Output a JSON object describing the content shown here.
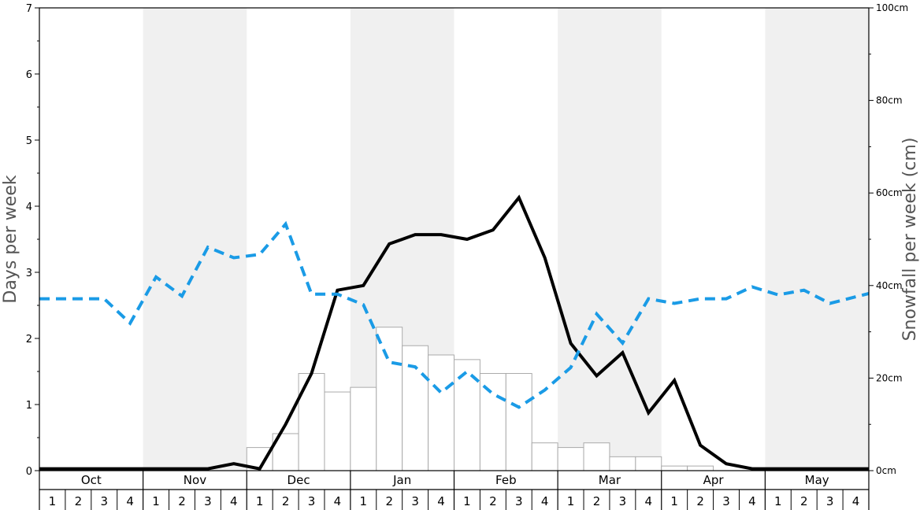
{
  "chart_data": {
    "type": "bar",
    "ylabel": "Days per week",
    "ylabel_right": "Snowfall per week (cm)",
    "ylim": [
      0,
      7
    ],
    "y_ticks": [
      0,
      1,
      2,
      3,
      4,
      5,
      6,
      7
    ],
    "ylim_right": [
      0,
      100
    ],
    "y_ticks_right": [
      {
        "value": 0,
        "label": "0cm"
      },
      {
        "value": 20,
        "label": "20cm"
      },
      {
        "value": 40,
        "label": "40cm"
      },
      {
        "value": 60,
        "label": "60cm"
      },
      {
        "value": 80,
        "label": "80cm"
      },
      {
        "value": 100,
        "label": "100cm"
      }
    ],
    "months": [
      "Oct",
      "Nov",
      "Dec",
      "Jan",
      "Feb",
      "Mar",
      "Apr",
      "May"
    ],
    "weeks": [
      "1",
      "2",
      "3",
      "4"
    ],
    "shaded_months": [
      "Nov",
      "Jan",
      "Mar",
      "May"
    ],
    "series": [
      {
        "type": "bar",
        "axis": "left",
        "values": [
          0,
          0,
          0,
          0,
          0,
          0,
          0,
          0,
          0.35,
          0.56,
          1.47,
          1.19,
          1.26,
          2.17,
          1.89,
          1.75,
          1.68,
          1.47,
          1.47,
          0.42,
          0.35,
          0.42,
          0.21,
          0.21,
          0.07,
          0.07,
          0,
          0,
          0,
          0,
          0,
          0
        ]
      },
      {
        "type": "line",
        "style": "solid",
        "color": "#000000",
        "axis": "right",
        "values": [
          0.4,
          0.4,
          0.4,
          0.4,
          0.4,
          0.4,
          0.4,
          1.5,
          0.4,
          10,
          21,
          39,
          40,
          49,
          51,
          51,
          50,
          52,
          59,
          46,
          27.5,
          20.5,
          25.5,
          12.5,
          19.5,
          5.5,
          1.5,
          0.4,
          0.4,
          0.4,
          0.4,
          0.4
        ]
      },
      {
        "type": "line",
        "style": "dashed",
        "color": "#1a9be6",
        "axis": "left",
        "values": [
          2.6,
          2.6,
          2.6,
          2.23,
          2.93,
          2.64,
          3.38,
          3.22,
          3.27,
          3.73,
          2.67,
          2.67,
          2.51,
          1.64,
          1.57,
          1.18,
          1.5,
          1.16,
          0.96,
          1.22,
          1.56,
          2.37,
          1.93,
          2.6,
          2.53,
          2.6,
          2.6,
          2.78,
          2.66,
          2.73,
          2.53,
          2.68
        ]
      }
    ]
  }
}
